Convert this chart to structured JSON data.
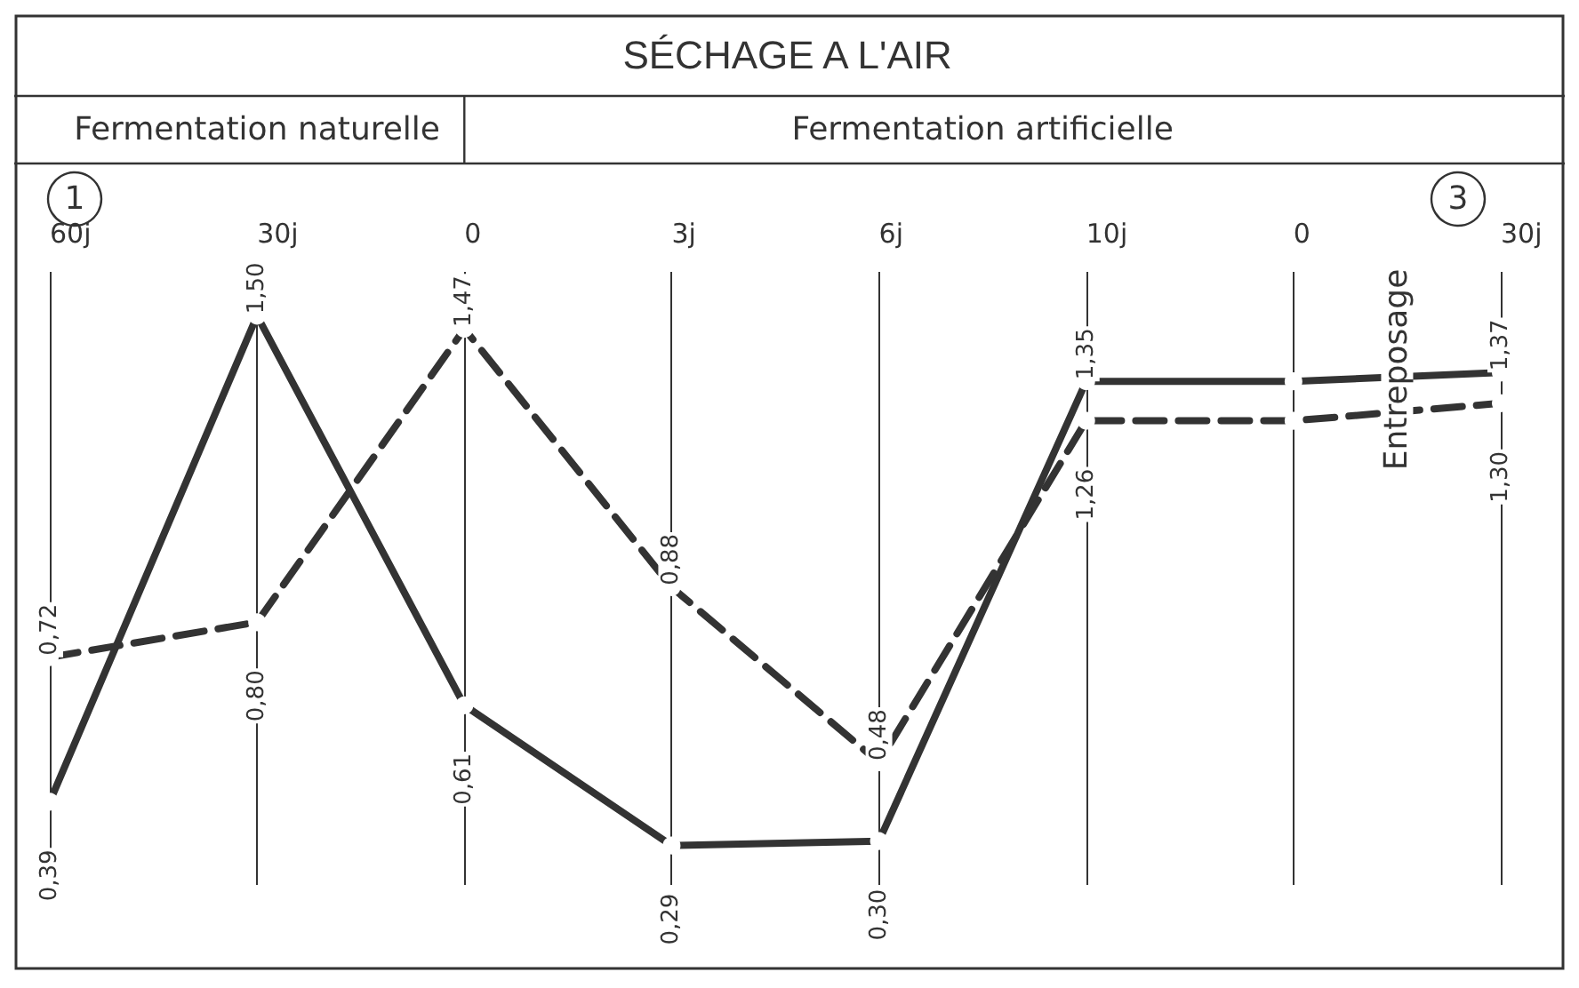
{
  "chart_data": {
    "type": "line",
    "title": "SÉCHAGE A L'AIR",
    "categories": [
      "60j",
      "30j",
      "0",
      "3j",
      "6j",
      "10j",
      "0",
      "30j"
    ],
    "series": [
      {
        "color": "#333333",
        "line_style": "solid",
        "values": [
          0.39,
          1.5,
          0.61,
          0.29,
          0.3,
          1.35,
          1.35,
          1.37
        ],
        "value_labels": [
          "0,39",
          "1,50",
          "0,61",
          "0,29",
          "0,30",
          "1,35",
          null,
          "1,37"
        ]
      },
      {
        "color": "#333333",
        "line_style": "dashed",
        "values": [
          0.72,
          0.8,
          1.47,
          0.88,
          0.48,
          1.26,
          1.26,
          1.3
        ],
        "value_labels": [
          "0,72",
          "0,80",
          "1,47",
          "0,88",
          "0,48",
          "1,26",
          null,
          "1,30"
        ]
      }
    ],
    "annotations": [
      "Fermentation naturelle",
      "Fermentation artificielle",
      "1",
      "3",
      "Entreposage"
    ],
    "marker": "circle",
    "grid": "x"
  }
}
